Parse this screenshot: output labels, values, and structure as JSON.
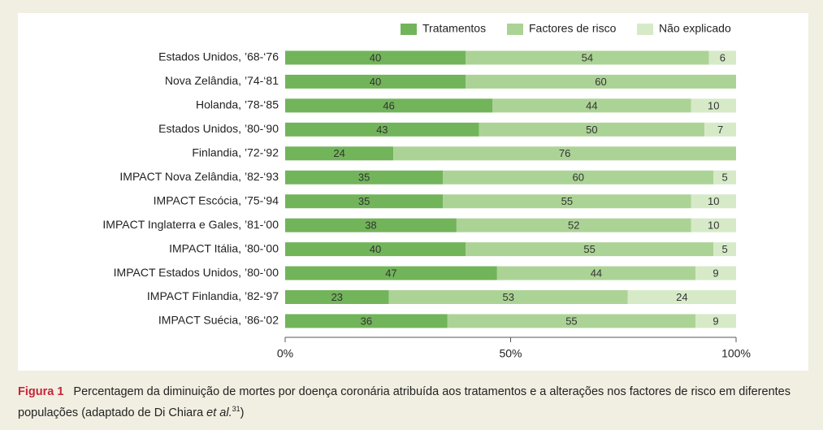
{
  "chart_data": {
    "type": "stacked_barh",
    "categories": [
      "Estados Unidos, ’68-‘76",
      "Nova Zelândia, ’74-‘81",
      "Holanda, ’78-‘85",
      "Estados Unidos, ’80-‘90",
      "Finlandia, ’72-‘92",
      "IMPACT Nova Zelândia, ’82-‘93",
      "IMPACT Escócia, ’75-‘94",
      "IMPACT Inglaterra e Gales, ’81-‘00",
      "IMPACT Itália, ’80-‘00",
      "IMPACT Estados Unidos, ’80-‘00",
      "IMPACT Finlandia, ’82-‘97",
      "IMPACT Suécia, ’86-‘02"
    ],
    "series": [
      {
        "name": "Tratamentos",
        "color": "#72b45a",
        "values": [
          40,
          40,
          46,
          43,
          24,
          35,
          35,
          38,
          40,
          47,
          23,
          36
        ]
      },
      {
        "name": "Factores de risco",
        "color": "#acd396",
        "values": [
          54,
          60,
          44,
          50,
          76,
          60,
          55,
          52,
          55,
          44,
          53,
          55
        ]
      },
      {
        "name": "Não explicado",
        "color": "#d6eac8",
        "values": [
          6,
          null,
          10,
          7,
          null,
          5,
          10,
          10,
          5,
          9,
          24,
          9
        ]
      }
    ],
    "xlim": [
      0,
      100
    ],
    "xticks": [
      {
        "value": 0,
        "label": "0%"
      },
      {
        "value": 50,
        "label": "50%"
      },
      {
        "value": 100,
        "label": "100%"
      }
    ],
    "legend": "top-right"
  },
  "caption": {
    "label": "Figura 1",
    "text": "Percentagem da diminuição de mortes por doença coronária atribuída aos tratamentos e a alterações nos factores de risco em diferentes populações (adaptado de Di Chiara ",
    "italic": "et al.",
    "superscript": "31",
    "end": ")"
  }
}
